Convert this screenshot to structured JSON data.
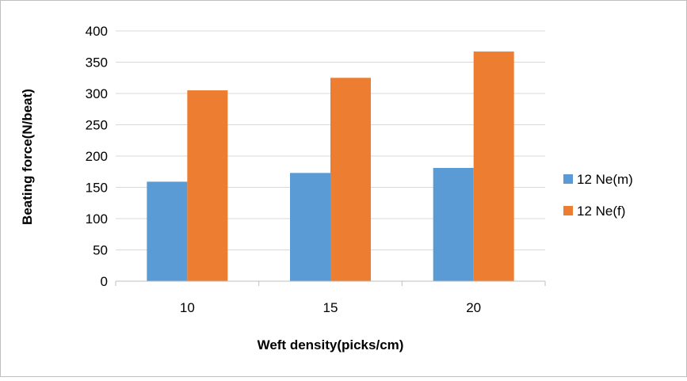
{
  "chart_data": {
    "type": "bar",
    "title": "",
    "xlabel": "Weft density(picks/cm)",
    "ylabel": "Beating force(N/beat)",
    "categories": [
      "10",
      "15",
      "20"
    ],
    "ylim": [
      0,
      400
    ],
    "yticks": [
      0,
      50,
      100,
      150,
      200,
      250,
      300,
      350,
      400
    ],
    "grid": true,
    "legend_position": "right",
    "series": [
      {
        "name": "12 Ne(m)",
        "color": "#5B9BD5",
        "values": [
          159,
          173,
          181
        ]
      },
      {
        "name": "12 Ne(f)",
        "color": "#ED7D31",
        "values": [
          305,
          325,
          367
        ]
      }
    ]
  },
  "colors": {
    "gridline": "#d9d9d9",
    "axis": "#bfbfbf",
    "frame": "#bfbfbf"
  }
}
